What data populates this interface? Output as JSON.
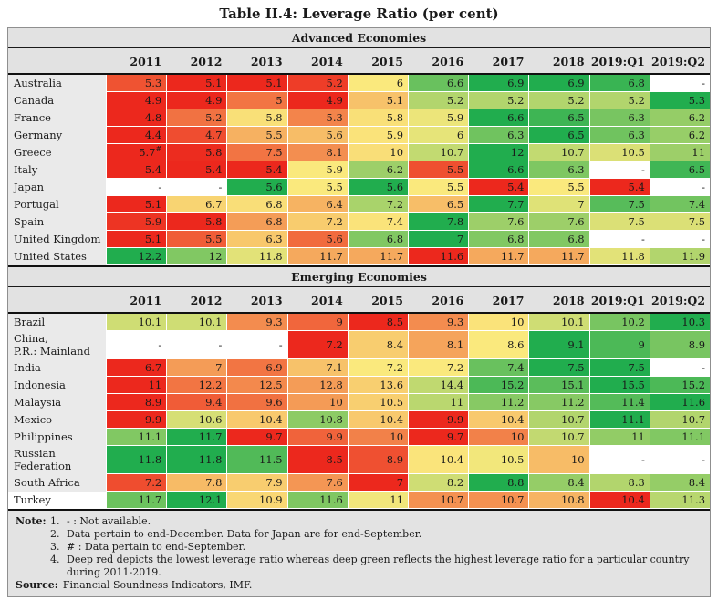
{
  "title": "Table II.4: Leverage Ratio (per cent)",
  "chart_data": {
    "type": "heatmap",
    "title": "Table II.4: Leverage Ratio (per cent)",
    "unit": "per cent",
    "na_symbol": "-",
    "columns": [
      "2011",
      "2012",
      "2013",
      "2014",
      "2015",
      "2016",
      "2017",
      "2018",
      "2019:Q1",
      "2019:Q2"
    ],
    "color_scale": {
      "low": "#ec281d",
      "mid": "#fae97d",
      "high": "#21ad4e",
      "meaning": "per-country: deep red = lowest leverage ratio, deep green = highest leverage ratio during 2011-2019"
    },
    "sections": [
      {
        "name": "Advanced Economies",
        "rows": [
          {
            "country": "Australia",
            "values": [
              "5.3",
              "5.1",
              "5.1",
              "5.2",
              "6",
              "6.6",
              "6.9",
              "6.9",
              "6.8",
              "-"
            ]
          },
          {
            "country": "Canada",
            "values": [
              "4.9",
              "4.9",
              "5",
              "4.9",
              "5.1",
              "5.2",
              "5.2",
              "5.2",
              "5.2",
              "5.3"
            ]
          },
          {
            "country": "France",
            "values": [
              "4.8",
              "5.2",
              "5.8",
              "5.3",
              "5.8",
              "5.9",
              "6.6",
              "6.5",
              "6.3",
              "6.2"
            ]
          },
          {
            "country": "Germany",
            "values": [
              "4.4",
              "4.7",
              "5.5",
              "5.6",
              "5.9",
              "6",
              "6.3",
              "6.5",
              "6.3",
              "6.2"
            ]
          },
          {
            "country": "Greece",
            "values": [
              "5.7#",
              "5.8",
              "7.5",
              "8.1",
              "10",
              "10.7",
              "12",
              "10.7",
              "10.5",
              "11"
            ]
          },
          {
            "country": "Italy",
            "values": [
              "5.4",
              "5.4",
              "5.4",
              "5.9",
              "6.2",
              "5.5",
              "6.6",
              "6.3",
              "-",
              "6.5"
            ]
          },
          {
            "country": "Japan",
            "values": [
              "-",
              "-",
              "5.6",
              "5.5",
              "5.6",
              "5.5",
              "5.4",
              "5.5",
              "5.4",
              "-"
            ]
          },
          {
            "country": "Portugal",
            "values": [
              "5.1",
              "6.7",
              "6.8",
              "6.4",
              "7.2",
              "6.5",
              "7.7",
              "7",
              "7.5",
              "7.4"
            ]
          },
          {
            "country": "Spain",
            "values": [
              "5.9",
              "5.8",
              "6.8",
              "7.2",
              "7.4",
              "7.8",
              "7.6",
              "7.6",
              "7.5",
              "7.5"
            ]
          },
          {
            "country": "United Kingdom",
            "values": [
              "5.1",
              "5.5",
              "6.3",
              "5.6",
              "6.8",
              "7",
              "6.8",
              "6.8",
              "-",
              "-"
            ]
          },
          {
            "country": "United States",
            "values": [
              "12.2",
              "12",
              "11.8",
              "11.7",
              "11.7",
              "11.6",
              "11.7",
              "11.7",
              "11.8",
              "11.9"
            ]
          }
        ]
      },
      {
        "name": "Emerging Economies",
        "rows": [
          {
            "country": "Brazil",
            "values": [
              "10.1",
              "10.1",
              "9.3",
              "9",
              "8.5",
              "9.3",
              "10",
              "10.1",
              "10.2",
              "10.3"
            ]
          },
          {
            "country": "China,\nP.R.: Mainland",
            "values": [
              "-",
              "-",
              "-",
              "7.2",
              "8.4",
              "8.1",
              "8.6",
              "9.1",
              "9",
              "8.9"
            ]
          },
          {
            "country": "India",
            "values": [
              "6.7",
              "7",
              "6.9",
              "7.1",
              "7.2",
              "7.2",
              "7.4",
              "7.5",
              "7.5",
              "-"
            ]
          },
          {
            "country": "Indonesia",
            "values": [
              "11",
              "12.2",
              "12.5",
              "12.8",
              "13.6",
              "14.4",
              "15.2",
              "15.1",
              "15.5",
              "15.2"
            ]
          },
          {
            "country": "Malaysia",
            "values": [
              "8.9",
              "9.4",
              "9.6",
              "10",
              "10.5",
              "11",
              "11.2",
              "11.2",
              "11.4",
              "11.6"
            ]
          },
          {
            "country": "Mexico",
            "values": [
              "9.9",
              "10.6",
              "10.4",
              "10.8",
              "10.4",
              "9.9",
              "10.4",
              "10.7",
              "11.1",
              "10.7"
            ]
          },
          {
            "country": "Philippines",
            "values": [
              "11.1",
              "11.7",
              "9.7",
              "9.9",
              "10",
              "9.7",
              "10",
              "10.7",
              "11",
              "11.1"
            ]
          },
          {
            "country": "Russian\nFederation",
            "values": [
              "11.8",
              "11.8",
              "11.5",
              "8.5",
              "8.9",
              "10.4",
              "10.5",
              "10",
              "-",
              "-"
            ]
          },
          {
            "country": "South Africa",
            "values": [
              "7.2",
              "7.8",
              "7.9",
              "7.6",
              "7",
              "8.2",
              "8.8",
              "8.4",
              "8.3",
              "8.4"
            ]
          },
          {
            "country": "Turkey",
            "values": [
              "11.7",
              "12.1",
              "10.9",
              "11.6",
              "11",
              "10.7",
              "10.7",
              "10.8",
              "10.4",
              "11.3"
            ],
            "label_white": true
          }
        ]
      }
    ]
  },
  "notes": {
    "label": "Note:",
    "items": [
      {
        "num": "1.",
        "text": "- : Not available."
      },
      {
        "num": "2.",
        "text": "Data pertain to end-December. Data for Japan are for end-September."
      },
      {
        "num": "3.",
        "text": "# : Data pertain to end-September."
      },
      {
        "num": "4.",
        "text": "Deep red depicts the lowest leverage ratio whereas deep green reflects the highest leverage ratio for a particular country during 2011-2019."
      }
    ],
    "source_label": "Source:",
    "source_text": "Financial Soundness Indicators, IMF."
  },
  "colors": {
    "scale_low": "#ec281d",
    "scale_mid": "#fae97d",
    "scale_high": "#21ad4e",
    "header_bg": "#e2e2e2",
    "label_bg": "#eaeaea",
    "notes_bg": "#e3e3e3",
    "na_bg": "#ffffff"
  }
}
